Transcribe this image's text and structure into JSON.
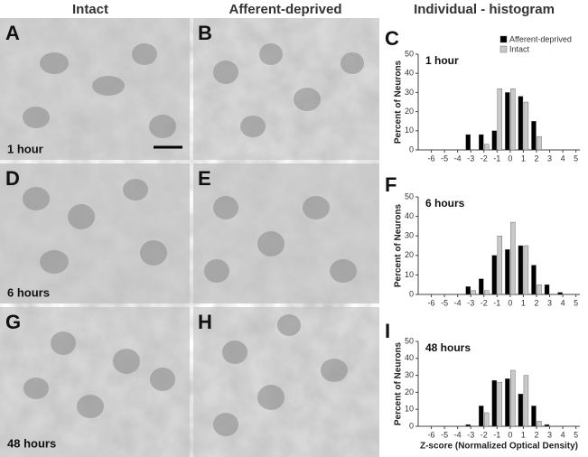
{
  "headers": [
    "Intact",
    "Afferent-deprived",
    "Individual - histogram"
  ],
  "panels": [
    "A",
    "B",
    "C",
    "D",
    "E",
    "F",
    "G",
    "H",
    "I"
  ],
  "image_labels": [
    "1 hour",
    "6 hours",
    "48 hours"
  ],
  "chart_data": [
    {
      "type": "bar",
      "title": "1 hour",
      "ylabel": "Percent of Neurons",
      "x": [
        -3,
        -2,
        -1,
        0,
        1,
        2,
        3,
        4
      ],
      "series": [
        {
          "name": "Afferent-deprived",
          "color": "#000000",
          "values": [
            8,
            8,
            10,
            30,
            28,
            15,
            0,
            0
          ]
        },
        {
          "name": "Intact",
          "color": "#c8c8c8",
          "values": [
            0,
            3,
            32,
            32,
            25,
            7,
            0,
            0
          ]
        }
      ],
      "xlim": [
        -7,
        5.3
      ],
      "ylim": [
        0,
        50
      ],
      "xticks": [
        -6,
        -5,
        -4,
        -3,
        -2,
        -1,
        0,
        1,
        2,
        3,
        4,
        5
      ],
      "yticks": [
        0,
        10,
        20,
        30,
        40,
        50
      ],
      "legend": "upper right"
    },
    {
      "type": "bar",
      "title": "6 hours",
      "ylabel": "Percent of Neurons",
      "x": [
        -3,
        -2,
        -1,
        0,
        1,
        2,
        3,
        4
      ],
      "series": [
        {
          "color": "#000000",
          "values": [
            4,
            8,
            20,
            23,
            25,
            15,
            5,
            1
          ]
        },
        {
          "color": "#c8c8c8",
          "values": [
            2,
            2,
            30,
            37,
            25,
            5,
            0,
            0
          ]
        }
      ],
      "xlim": [
        -7,
        5.3
      ],
      "ylim": [
        0,
        50
      ],
      "xticks": [
        -6,
        -5,
        -4,
        -3,
        -2,
        -1,
        0,
        1,
        2,
        3,
        4,
        5
      ],
      "yticks": [
        0,
        10,
        20,
        30,
        40,
        50
      ]
    },
    {
      "type": "bar",
      "title": "48 hours",
      "ylabel": "Percent of Neurons",
      "xlabel": "Z-score (Normalized Optical Density)",
      "x": [
        -3,
        -2,
        -1,
        0,
        1,
        2,
        3,
        4
      ],
      "series": [
        {
          "color": "#000000",
          "values": [
            1,
            12,
            27,
            28,
            19,
            12,
            1,
            0
          ]
        },
        {
          "color": "#c8c8c8",
          "values": [
            0,
            8,
            26,
            33,
            30,
            3,
            0,
            0
          ]
        }
      ],
      "xlim": [
        -7,
        5.3
      ],
      "ylim": [
        0,
        50
      ],
      "xticks": [
        -6,
        -5,
        -4,
        -3,
        -2,
        -1,
        0,
        1,
        2,
        3,
        4,
        5
      ],
      "yticks": [
        0,
        10,
        20,
        30,
        40,
        50
      ]
    }
  ]
}
